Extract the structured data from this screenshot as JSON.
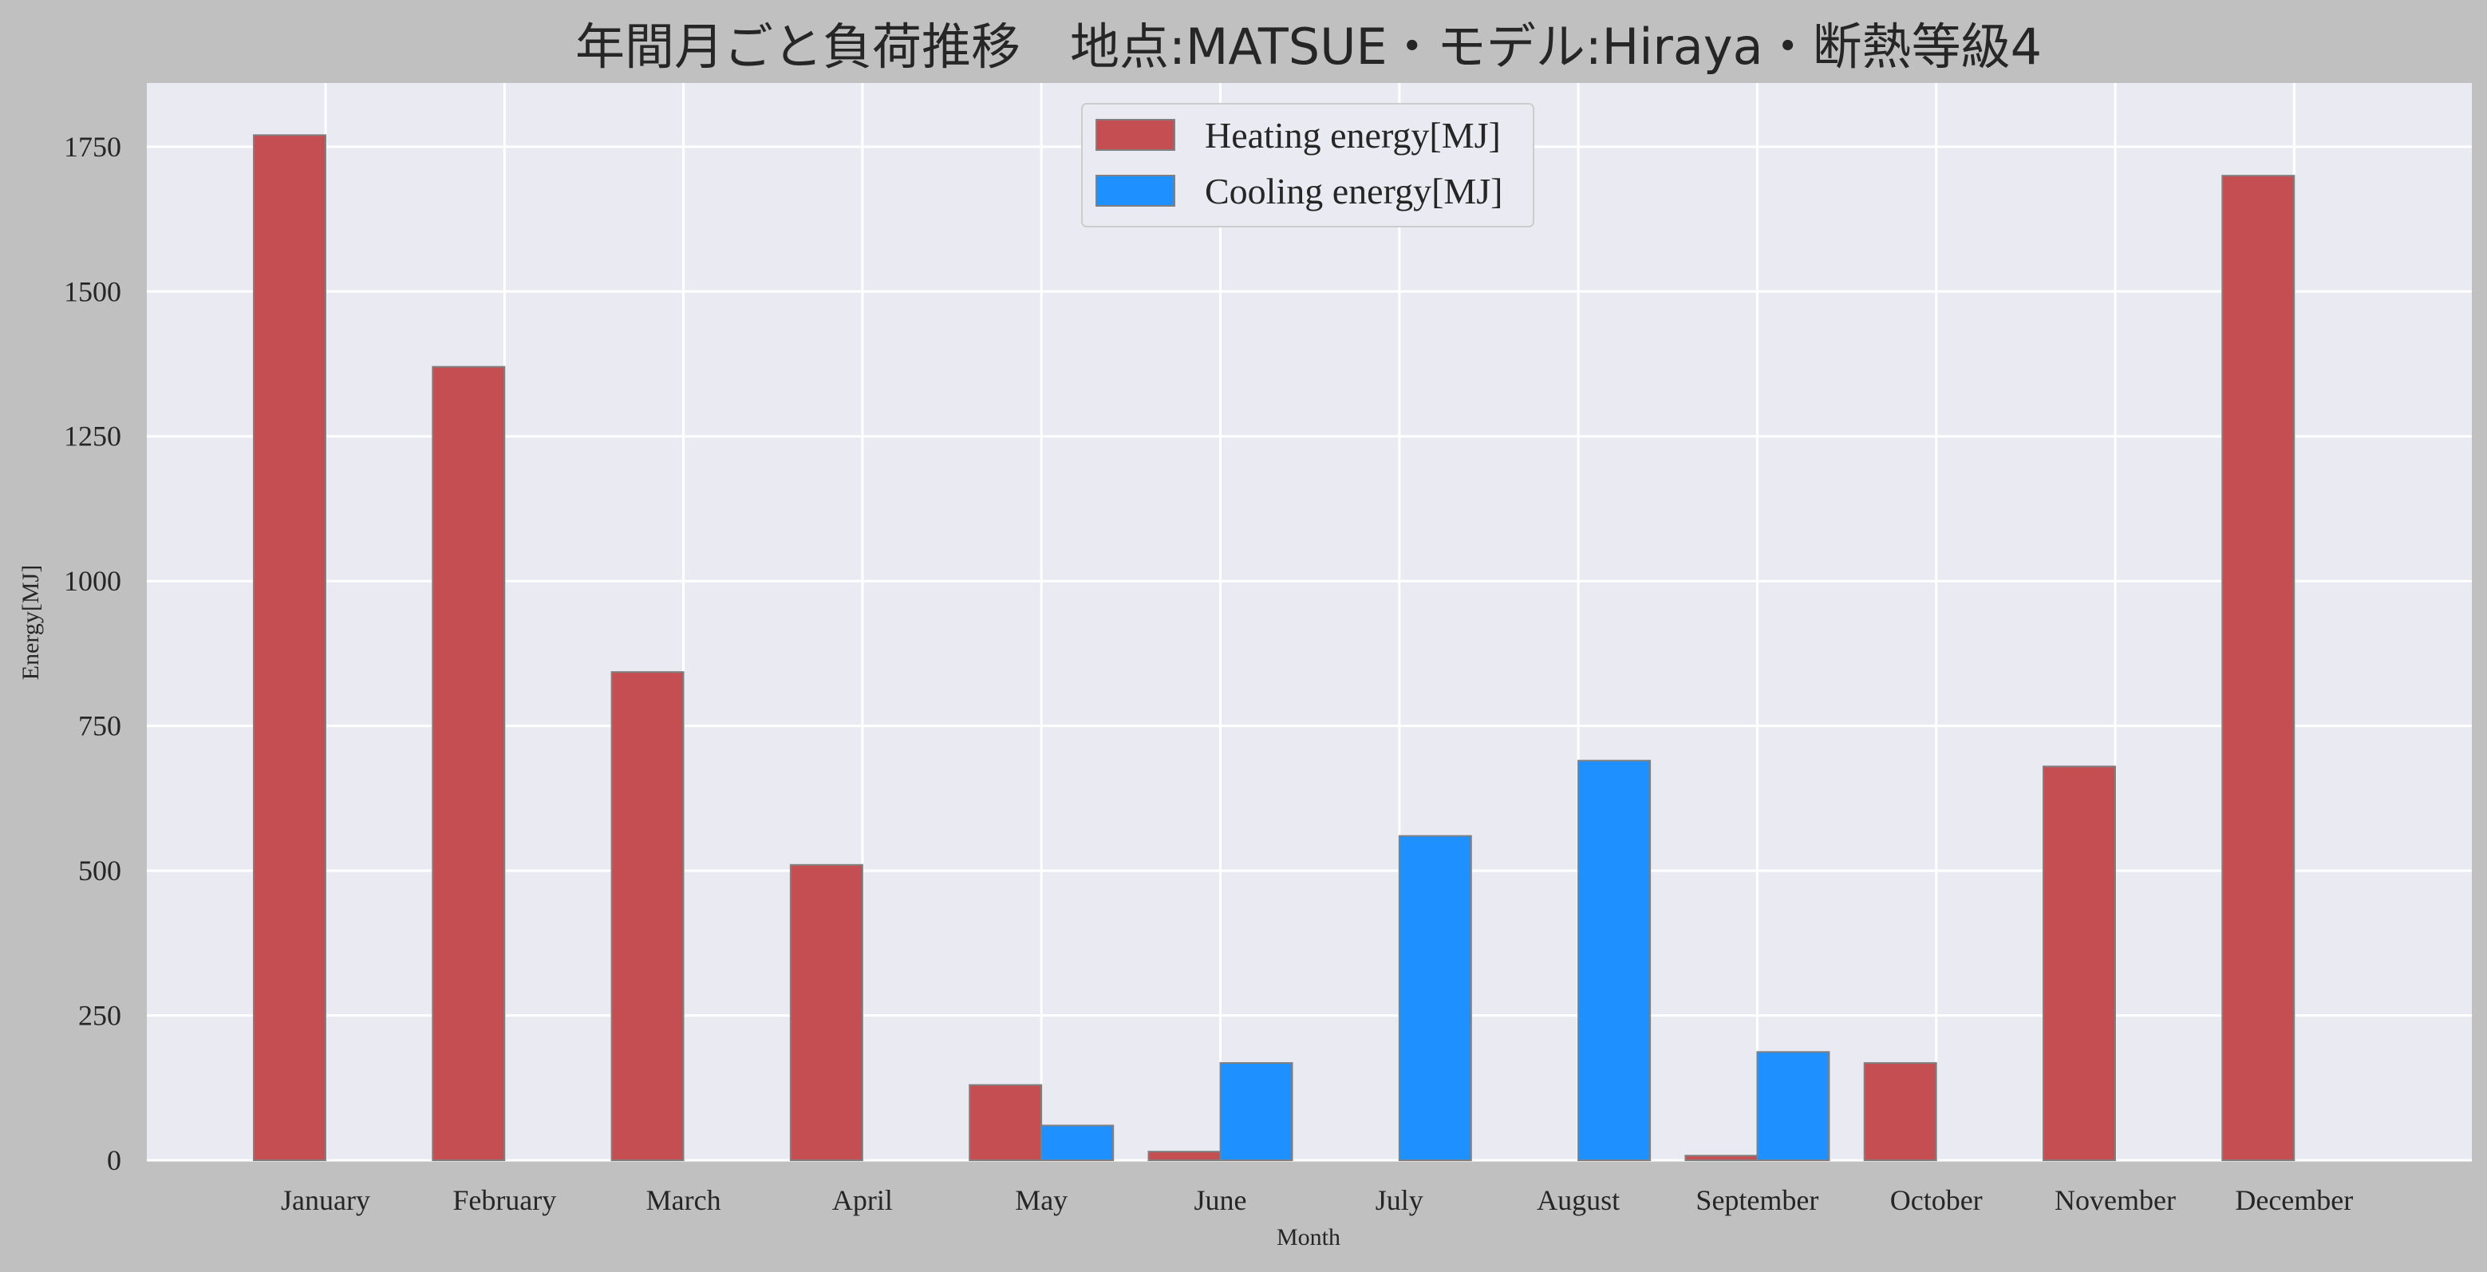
{
  "chart_data": {
    "type": "bar",
    "title": "年間月ごと負荷推移　地点:MATSUE・モデル:Hiraya・断熱等級4",
    "xlabel": "Month",
    "ylabel": "Energy[MJ]",
    "categories": [
      "January",
      "February",
      "March",
      "April",
      "May",
      "June",
      "July",
      "August",
      "September",
      "October",
      "November",
      "December"
    ],
    "series": [
      {
        "name": "Heating energy[MJ]",
        "color": "#c44e52",
        "values": [
          1770,
          1370,
          843,
          510,
          130,
          15,
          0,
          0,
          8,
          168,
          680,
          1700
        ]
      },
      {
        "name": "Cooling energy[MJ]",
        "color": "#1e90ff",
        "values": [
          0,
          0,
          0,
          0,
          60,
          168,
          560,
          690,
          187,
          0,
          0,
          0
        ]
      }
    ],
    "ylim": [
      0,
      1860
    ],
    "yticks": [
      0,
      250,
      500,
      750,
      1000,
      1250,
      1500,
      1750
    ],
    "grid": true,
    "legend_position": "top-center",
    "colors": {
      "figure_bg": "#c0c0c0",
      "plot_bg": "#eaeaf2",
      "grid": "#ffffff",
      "bar_edge": "#808080",
      "text": "#262626"
    }
  }
}
